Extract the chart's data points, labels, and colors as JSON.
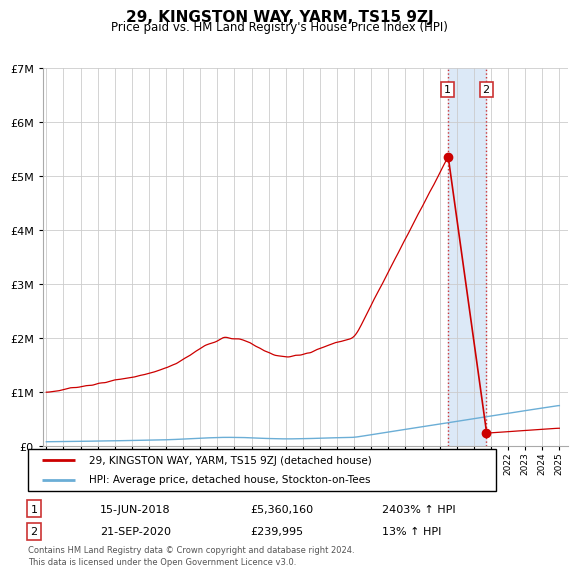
{
  "title": "29, KINGSTON WAY, YARM, TS15 9ZJ",
  "subtitle": "Price paid vs. HM Land Registry's House Price Index (HPI)",
  "hpi_label": "HPI: Average price, detached house, Stockton-on-Tees",
  "property_label": "29, KINGSTON WAY, YARM, TS15 9ZJ (detached house)",
  "hpi_color": "#6baed6",
  "property_color": "#cc0000",
  "highlight_color": "#dce9f7",
  "annotation1": {
    "index": 1,
    "date": "15-JUN-2018",
    "price": "£5,360,160",
    "hpi": "2403% ↑ HPI",
    "year": 2018.46
  },
  "annotation2": {
    "index": 2,
    "date": "21-SEP-2020",
    "price": "£239,995",
    "hpi": "13% ↑ HPI",
    "year": 2020.72
  },
  "footer": "Contains HM Land Registry data © Crown copyright and database right 2024.\nThis data is licensed under the Open Government Licence v3.0.",
  "ylim": [
    0,
    7000000
  ],
  "yticks": [
    0,
    1000000,
    2000000,
    3000000,
    4000000,
    5000000,
    6000000,
    7000000
  ],
  "start_year": 1995,
  "end_year": 2025,
  "t1_price": 5360160,
  "t2_price": 239995,
  "t1_year": 2018.46,
  "t2_year": 2020.72,
  "background_color": "#ffffff",
  "grid_color": "#cccccc"
}
